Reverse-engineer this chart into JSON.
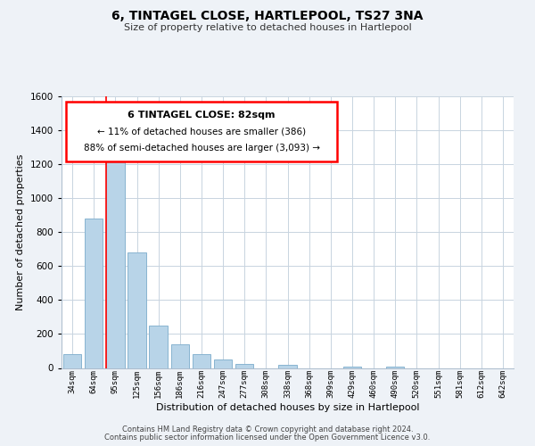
{
  "title": "6, TINTAGEL CLOSE, HARTLEPOOL, TS27 3NA",
  "subtitle": "Size of property relative to detached houses in Hartlepool",
  "xlabel": "Distribution of detached houses by size in Hartlepool",
  "ylabel": "Number of detached properties",
  "bar_labels": [
    "34sqm",
    "64sqm",
    "95sqm",
    "125sqm",
    "156sqm",
    "186sqm",
    "216sqm",
    "247sqm",
    "277sqm",
    "308sqm",
    "338sqm",
    "368sqm",
    "399sqm",
    "429sqm",
    "460sqm",
    "490sqm",
    "520sqm",
    "551sqm",
    "581sqm",
    "612sqm",
    "642sqm"
  ],
  "bar_values": [
    80,
    880,
    1310,
    680,
    250,
    140,
    80,
    50,
    25,
    0,
    20,
    0,
    0,
    10,
    0,
    10,
    0,
    0,
    0,
    0,
    0
  ],
  "bar_color": "#b8d4e8",
  "bar_edge_color": "#88b4d0",
  "ylim": [
    0,
    1600
  ],
  "yticks": [
    0,
    200,
    400,
    600,
    800,
    1000,
    1200,
    1400,
    1600
  ],
  "redline_bin_index": 1.58,
  "annotation_title": "6 TINTAGEL CLOSE: 82sqm",
  "annotation_line1": "← 11% of detached houses are smaller (386)",
  "annotation_line2": "88% of semi-detached houses are larger (3,093) →",
  "footer_line1": "Contains HM Land Registry data © Crown copyright and database right 2024.",
  "footer_line2": "Contains public sector information licensed under the Open Government Licence v3.0.",
  "background_color": "#eef2f7",
  "plot_background": "#ffffff",
  "grid_color": "#c8d4e0"
}
